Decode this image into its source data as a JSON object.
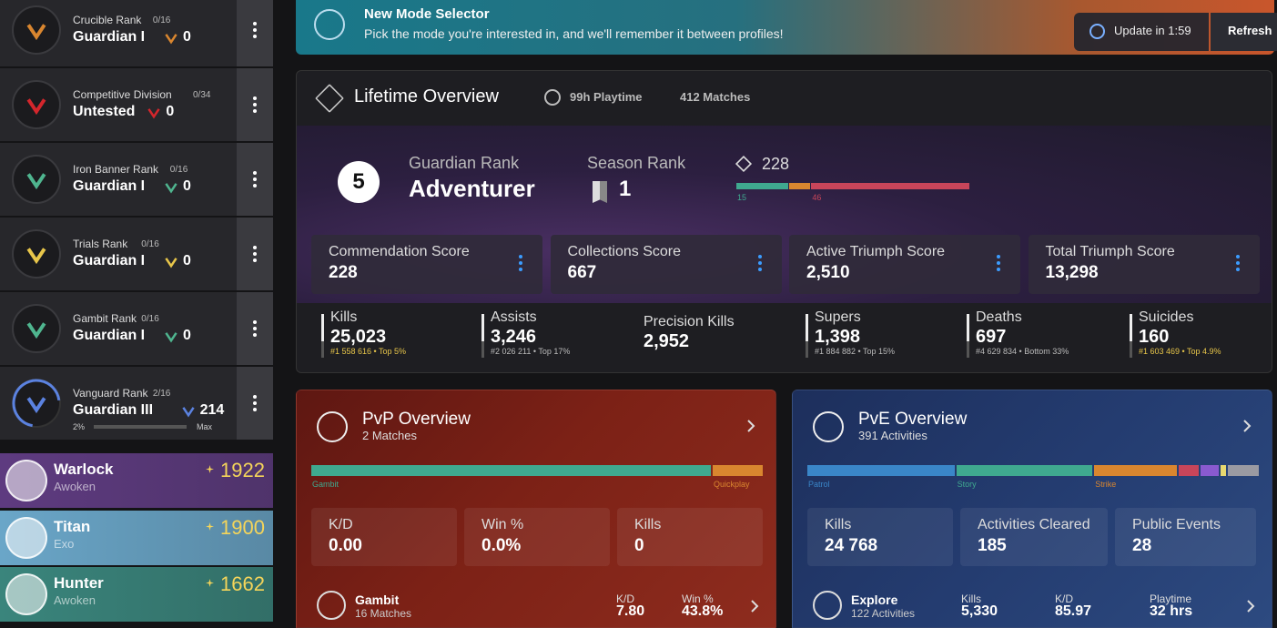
{
  "banner": {
    "title": "New Mode Selector",
    "text": "Pick the mode you're interested in, and we'll remember it between profiles!",
    "update": "Update in 1:59",
    "refresh": "Refresh"
  },
  "ranks": [
    {
      "name": "Crucible Rank",
      "progress": "0/16",
      "rank": "Guardian I",
      "value": "0",
      "color": "#d9862f"
    },
    {
      "name": "Competitive Division",
      "progress": "0/34",
      "rank": "Untested",
      "value": "0",
      "color": "#d4262c"
    },
    {
      "name": "Iron Banner Rank",
      "progress": "0/16",
      "rank": "Guardian I",
      "value": "0",
      "color": "#4fb58f"
    },
    {
      "name": "Trials Rank",
      "progress": "0/16",
      "rank": "Guardian I",
      "value": "0",
      "color": "#e8c64a"
    },
    {
      "name": "Gambit Rank",
      "progress": "0/16",
      "rank": "Guardian I",
      "value": "0",
      "color": "#4fb58f"
    },
    {
      "name": "Vanguard Rank",
      "progress": "2/16",
      "rank": "Guardian III",
      "value": "214",
      "color": "#5b82e0",
      "percent": "2%",
      "max": "Max"
    }
  ],
  "characters": [
    {
      "class": "Warlock",
      "race": "Awoken",
      "power": "1922",
      "color": "#5e3b80"
    },
    {
      "class": "Titan",
      "race": "Exo",
      "power": "1900",
      "color": "#6aa6c8"
    },
    {
      "class": "Hunter",
      "race": "Awoken",
      "power": "1662",
      "color": "#3a857c"
    }
  ],
  "lifetime": {
    "title": "Lifetime Overview",
    "playtime": "99h Playtime",
    "matches": "412 Matches",
    "guardian_rank": {
      "number": "5",
      "label": "Guardian Rank",
      "value": "Adventurer"
    },
    "season_rank": {
      "label": "Season Rank",
      "value": "1"
    },
    "triumph": {
      "value": "228",
      "segments": [
        {
          "label": "15",
          "value": 57,
          "color": "#3fa98f"
        },
        {
          "label": null,
          "value": 23,
          "color": "#d9862f"
        },
        {
          "label": "46",
          "value": 173,
          "color": "#c8455a"
        }
      ]
    },
    "scores": [
      {
        "label": "Commendation Score",
        "value": "228"
      },
      {
        "label": "Collections Score",
        "value": "667"
      },
      {
        "label": "Active Triumph Score",
        "value": "2,510"
      },
      {
        "label": "Total Triumph Score",
        "value": "13,298"
      }
    ],
    "stats": [
      {
        "label": "Kills",
        "value": "25,023",
        "detail": "#1 558 616 • Top 5%",
        "highlight": true
      },
      {
        "label": "Assists",
        "value": "3,246",
        "detail": "#2 026 211 • Top 17%",
        "highlight": false
      },
      {
        "label": "Precision Kills",
        "value": "2,952"
      },
      {
        "label": "Supers",
        "value": "1,398",
        "detail": "#1 884 882 • Top 15%",
        "highlight": false
      },
      {
        "label": "Deaths",
        "value": "697",
        "detail": "#4 629 834 • Bottom 33%",
        "highlight": false
      },
      {
        "label": "Suicides",
        "value": "160",
        "detail": "#1 603 469 • Top 4.9%",
        "highlight": true
      }
    ]
  },
  "pvp": {
    "title": "PvP Overview",
    "subtitle": "2 Matches",
    "segments": [
      {
        "label": "Gambit",
        "value": 439,
        "color": "#3fa98f"
      },
      {
        "label": "Quickplay",
        "value": 55,
        "color": "#d9862f"
      }
    ],
    "stats": [
      {
        "label": "K/D",
        "value": "0.00"
      },
      {
        "label": "Win %",
        "value": "0.0%"
      },
      {
        "label": "Kills",
        "value": "0"
      }
    ],
    "activity": {
      "name": "Gambit",
      "sub": "16 Matches",
      "stats": [
        {
          "label": "K/D",
          "value": "7.80"
        },
        {
          "label": "Win %",
          "value": "43.8%"
        }
      ]
    }
  },
  "pve": {
    "title": "PvE Overview",
    "subtitle": "391 Activities",
    "segments": [
      {
        "label": "Patrol",
        "value": 161,
        "color": "#3a86c8"
      },
      {
        "label": "Story",
        "value": 149,
        "color": "#3fa98f"
      },
      {
        "label": "Strike",
        "value": 90,
        "color": "#d9862f"
      },
      {
        "label": null,
        "value": 22,
        "color": "#c8455a"
      },
      {
        "label": null,
        "value": 20,
        "color": "#8a5ad0"
      },
      {
        "label": null,
        "value": 6,
        "color": "#e8d870"
      },
      {
        "label": null,
        "value": 34,
        "color": "#9a9aa2"
      }
    ],
    "stats": [
      {
        "label": "Kills",
        "value": "24 768"
      },
      {
        "label": "Activities Cleared",
        "value": "185"
      },
      {
        "label": "Public Events",
        "value": "28"
      }
    ],
    "activity": {
      "name": "Explore",
      "sub": "122 Activities",
      "stats": [
        {
          "label": "Kills",
          "value": "5,330"
        },
        {
          "label": "K/D",
          "value": "85.97"
        },
        {
          "label": "Playtime",
          "value": "32 hrs"
        }
      ]
    }
  }
}
